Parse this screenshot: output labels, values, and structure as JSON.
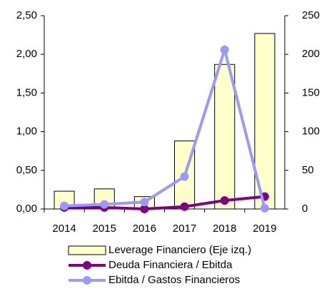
{
  "chart_data": {
    "type": "bar_line_dual",
    "categories": [
      "2014",
      "2015",
      "2016",
      "2017",
      "2018",
      "2019"
    ],
    "series": [
      {
        "name": "Leverage Financiero (Eje izq.)",
        "type": "bar",
        "color": "#ffffcc",
        "values": [
          0.23,
          0.26,
          0.16,
          0.88,
          1.87,
          2.27
        ]
      },
      {
        "name": "Deuda Financiera / Ebitda",
        "type": "line",
        "color": "#800080",
        "values": [
          0.02,
          0.02,
          0.0,
          0.03,
          0.11,
          0.16
        ]
      },
      {
        "name": "Ebitda / Gastos Financieros",
        "type": "line",
        "axis": "y2",
        "color": "#9999ff",
        "values": [
          4,
          6,
          9,
          42,
          206,
          1
        ]
      }
    ],
    "ylim": [
      0,
      2.5
    ],
    "yticks": [
      {
        "value": 0,
        "label": "0,00"
      },
      {
        "value": 0.5,
        "label": "0,50"
      },
      {
        "value": 1,
        "label": "1,00"
      },
      {
        "value": 1.5,
        "label": "1,50"
      },
      {
        "value": 2,
        "label": "2,00"
      },
      {
        "value": 2.5,
        "label": "2,50"
      }
    ],
    "y2lim": [
      0,
      250
    ],
    "y2ticks": [
      0,
      50,
      100,
      150,
      200,
      250
    ],
    "grid": false
  }
}
